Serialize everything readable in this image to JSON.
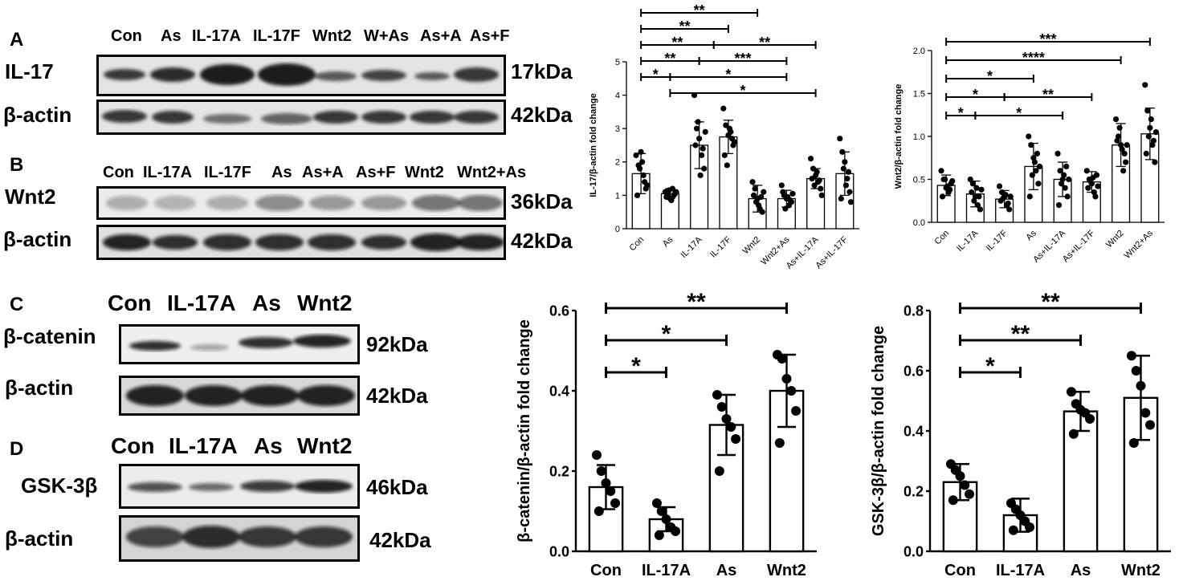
{
  "panels": {
    "A": {
      "label": "A",
      "lanes": [
        "Con",
        "As",
        "IL-17A",
        "IL-17F",
        "Wnt2",
        "W+As",
        "As+A",
        "As+F"
      ],
      "rows": [
        {
          "protein": "IL-17",
          "kda": "17kDa"
        },
        {
          "protein": "β-actin",
          "kda": "42kDa"
        }
      ]
    },
    "B": {
      "label": "B",
      "lanes": [
        "Con",
        "IL-17A",
        "IL-17F",
        "As",
        "As+A",
        "As+F",
        "Wnt2",
        "Wnt2+As"
      ],
      "rows": [
        {
          "protein": "Wnt2",
          "kda": "36kDa"
        },
        {
          "protein": "β-actin",
          "kda": "42kDa"
        }
      ]
    },
    "C": {
      "label": "C",
      "lanes": [
        "Con",
        "IL-17A",
        "As",
        "Wnt2"
      ],
      "rows": [
        {
          "protein": "β-catenin",
          "kda": "92kDa"
        },
        {
          "protein": "β-actin",
          "kda": "42kDa"
        }
      ]
    },
    "D": {
      "label": "D",
      "lanes": [
        "Con",
        "IL-17A",
        "As",
        "Wnt2"
      ],
      "rows": [
        {
          "protein": "GSK-3β",
          "kda": "46kDa"
        },
        {
          "protein": "β-actin",
          "kda": "42kDa"
        }
      ]
    }
  },
  "chart_data": [
    {
      "type": "bar",
      "ylabel": "IL-17/β-actin fold change",
      "categories": [
        "Con",
        "As",
        "IL-17A",
        "IL-17F",
        "Wnt2",
        "Wnt2+As",
        "As+IL-17A",
        "As+IL-17F"
      ],
      "values": [
        1.65,
        1.05,
        2.5,
        2.75,
        0.9,
        0.9,
        1.5,
        1.65
      ],
      "errors": [
        0.6,
        0.15,
        0.7,
        0.5,
        0.4,
        0.25,
        0.3,
        0.65
      ],
      "points": [
        [
          2.2,
          1.9,
          2.3,
          1.6,
          1.2,
          1.0,
          1.8,
          2.0,
          1.4,
          1.3
        ],
        [
          1.1,
          1.0,
          0.9,
          1.2,
          1.05,
          0.95,
          1.15,
          0.85,
          1.0,
          1.1
        ],
        [
          4.0,
          3.0,
          2.7,
          2.2,
          1.8,
          2.5,
          3.2,
          1.6,
          2.4,
          2.9
        ],
        [
          3.6,
          3.1,
          2.8,
          2.9,
          2.5,
          2.2,
          1.9,
          3.0,
          2.7,
          2.6
        ],
        [
          1.4,
          1.2,
          0.9,
          0.6,
          0.5,
          1.0,
          0.8,
          0.7,
          0.95,
          1.1
        ],
        [
          1.3,
          1.0,
          0.9,
          0.7,
          0.8,
          1.1,
          0.6,
          0.95,
          0.85,
          1.05
        ],
        [
          2.1,
          1.8,
          1.6,
          1.4,
          1.2,
          1.5,
          1.3,
          1.7,
          1.45,
          1.0
        ],
        [
          2.7,
          2.3,
          2.0,
          1.5,
          1.1,
          0.9,
          1.8,
          1.3,
          1.7,
          0.8
        ]
      ],
      "ylim": [
        0,
        5
      ],
      "yticks": [
        "0",
        "1",
        "2",
        "3",
        "4",
        "5"
      ],
      "significance": [
        {
          "from": 0,
          "to": 4,
          "label": "**"
        },
        {
          "from": 0,
          "to": 3,
          "label": "**"
        },
        {
          "from": 0,
          "to": 2.5,
          "label": "**"
        },
        {
          "from": 2.5,
          "to": 6,
          "label": "**"
        },
        {
          "from": 0,
          "to": 2,
          "label": "**"
        },
        {
          "from": 2,
          "to": 5,
          "label": "***"
        },
        {
          "from": 0,
          "to": 1,
          "label": "*"
        },
        {
          "from": 1,
          "to": 5,
          "label": "*"
        },
        {
          "from": 1,
          "to": 6,
          "label": "*"
        }
      ]
    },
    {
      "type": "bar",
      "ylabel": "Wnt2/β-actin fold change",
      "categories": [
        "Con",
        "IL-17A",
        "IL-17F",
        "As",
        "As+IL-17A",
        "As+IL-17F",
        "Wnt2",
        "Wnt2+As"
      ],
      "values": [
        0.43,
        0.33,
        0.27,
        0.65,
        0.5,
        0.47,
        0.9,
        1.03
      ],
      "errors": [
        0.12,
        0.15,
        0.1,
        0.27,
        0.2,
        0.12,
        0.25,
        0.3
      ],
      "points": [
        [
          0.6,
          0.5,
          0.4,
          0.35,
          0.45,
          0.3,
          0.5,
          0.42,
          0.38,
          0.48
        ],
        [
          0.5,
          0.45,
          0.3,
          0.2,
          0.15,
          0.35,
          0.25,
          0.4,
          0.3,
          0.38
        ],
        [
          0.42,
          0.35,
          0.3,
          0.2,
          0.15,
          0.25,
          0.28,
          0.32,
          0.22,
          0.3
        ],
        [
          1.0,
          0.9,
          0.75,
          0.6,
          0.45,
          0.3,
          0.55,
          0.7,
          0.8,
          0.65
        ],
        [
          0.8,
          0.6,
          0.5,
          0.4,
          0.3,
          0.2,
          0.45,
          0.55,
          0.65,
          0.5
        ],
        [
          0.6,
          0.5,
          0.45,
          0.35,
          0.55,
          0.4,
          0.48,
          0.52,
          0.3,
          0.42
        ],
        [
          1.2,
          1.0,
          0.9,
          0.6,
          0.7,
          0.95,
          1.1,
          0.85,
          0.8,
          0.9
        ],
        [
          1.6,
          1.3,
          1.1,
          0.9,
          0.7,
          0.8,
          1.0,
          1.2,
          0.95,
          1.05
        ]
      ],
      "ylim": [
        0,
        2.0
      ],
      "yticks": [
        "0.0",
        "0.5",
        "1.0",
        "1.5",
        "2.0"
      ],
      "significance": [
        {
          "from": 0,
          "to": 7,
          "label": "***"
        },
        {
          "from": 0,
          "to": 6,
          "label": "****"
        },
        {
          "from": 0,
          "to": 3,
          "label": "*"
        },
        {
          "from": 0,
          "to": 2,
          "label": "*"
        },
        {
          "from": 2,
          "to": 5,
          "label": "**"
        },
        {
          "from": 0,
          "to": 1,
          "label": "*"
        },
        {
          "from": 1,
          "to": 4,
          "label": "*"
        }
      ]
    },
    {
      "type": "bar",
      "ylabel": "β-catenin/β-actin fold change",
      "categories": [
        "Con",
        "IL-17A",
        "As",
        "Wnt2"
      ],
      "values": [
        0.16,
        0.08,
        0.315,
        0.4
      ],
      "errors": [
        0.055,
        0.03,
        0.075,
        0.09
      ],
      "points": [
        [
          0.24,
          0.2,
          0.17,
          0.15,
          0.12,
          0.1
        ],
        [
          0.12,
          0.1,
          0.08,
          0.06,
          0.05,
          0.04
        ],
        [
          0.39,
          0.36,
          0.33,
          0.31,
          0.28,
          0.2
        ],
        [
          0.49,
          0.48,
          0.43,
          0.4,
          0.35,
          0.27
        ]
      ],
      "ylim": [
        0,
        0.6
      ],
      "yticks": [
        "0.0",
        "0.2",
        "0.4",
        "0.6"
      ],
      "significance": [
        {
          "from": 0,
          "to": 3,
          "label": "**"
        },
        {
          "from": 0,
          "to": 2,
          "label": "*"
        },
        {
          "from": 0,
          "to": 1,
          "label": "*"
        }
      ]
    },
    {
      "type": "bar",
      "ylabel": "GSK-3β/β-actin fold change",
      "categories": [
        "Con",
        "IL-17A",
        "As",
        "Wnt2"
      ],
      "values": [
        0.23,
        0.12,
        0.465,
        0.51
      ],
      "errors": [
        0.06,
        0.055,
        0.065,
        0.14
      ],
      "points": [
        [
          0.29,
          0.27,
          0.25,
          0.22,
          0.19,
          0.17
        ],
        [
          0.16,
          0.14,
          0.12,
          0.1,
          0.08,
          0.07
        ],
        [
          0.53,
          0.49,
          0.47,
          0.46,
          0.44,
          0.39
        ],
        [
          0.65,
          0.6,
          0.55,
          0.46,
          0.42,
          0.36
        ]
      ],
      "ylim": [
        0,
        0.8
      ],
      "yticks": [
        "0.0",
        "0.2",
        "0.4",
        "0.6",
        "0.8"
      ],
      "significance": [
        {
          "from": 0,
          "to": 3,
          "label": "**"
        },
        {
          "from": 0,
          "to": 2,
          "label": "**"
        },
        {
          "from": 0,
          "to": 1,
          "label": "*"
        }
      ]
    }
  ]
}
